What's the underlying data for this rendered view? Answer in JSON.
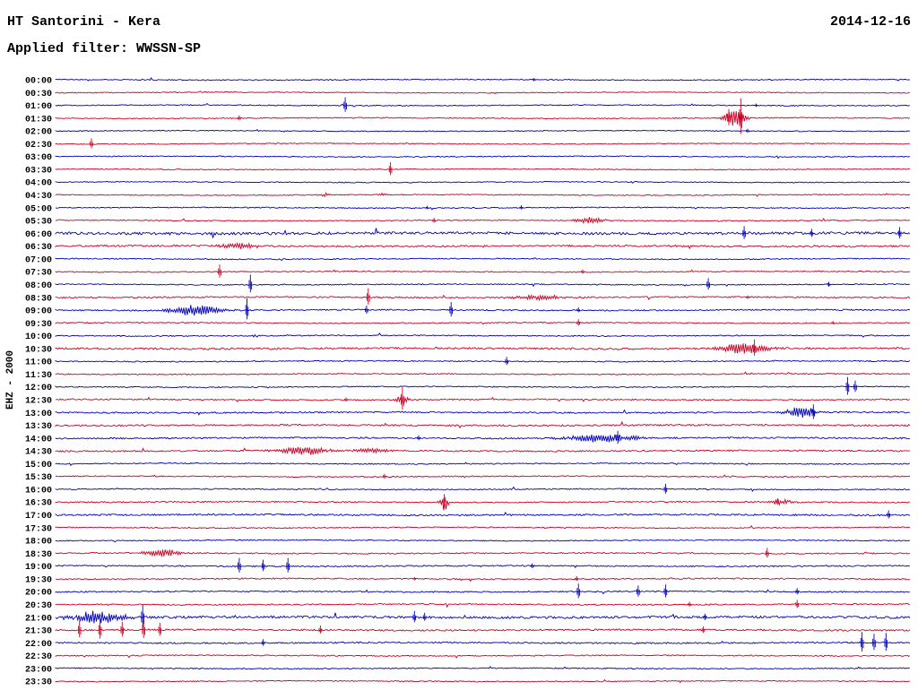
{
  "header": {
    "station_title": "HT Santorini - Kera",
    "date": "2014-12-16",
    "filter_label": "Applied filter: WWSSN-SP"
  },
  "axis": {
    "channel_label": "EHZ - 2000"
  },
  "chart_data": {
    "type": "helicorder",
    "title": "HT Santorini - Kera",
    "date": "2014-12-16",
    "filter": "WWSSN-SP",
    "channel": "EHZ - 2000",
    "row_minutes": 30,
    "rows_count": 48,
    "time_start": "00:00",
    "time_end": "23:30",
    "colors": {
      "blue": "#0000bb",
      "red": "#cc0022"
    },
    "rows": [
      {
        "label": "00:00",
        "color": "blue",
        "noise": 0.55,
        "events": [
          {
            "kind": "spike",
            "pos": 0.56,
            "amp": 2
          }
        ]
      },
      {
        "label": "00:30",
        "color": "red",
        "noise": 0.5,
        "events": []
      },
      {
        "label": "01:00",
        "color": "blue",
        "noise": 0.55,
        "events": [
          {
            "kind": "spike",
            "pos": 0.339,
            "amp": 9
          },
          {
            "kind": "spike",
            "pos": 0.82,
            "amp": 2
          }
        ]
      },
      {
        "label": "01:30",
        "color": "red",
        "noise": 0.55,
        "events": [
          {
            "kind": "burst",
            "pos": 0.795,
            "w": 0.02,
            "amp": 11
          },
          {
            "kind": "spike",
            "pos": 0.802,
            "amp": 22
          },
          {
            "kind": "spike",
            "pos": 0.788,
            "amp": 10
          },
          {
            "kind": "spike",
            "pos": 0.215,
            "amp": 3
          }
        ]
      },
      {
        "label": "02:00",
        "color": "blue",
        "noise": 0.5,
        "events": [
          {
            "kind": "spike",
            "pos": 0.81,
            "amp": 2.5
          }
        ]
      },
      {
        "label": "02:30",
        "color": "red",
        "noise": 0.5,
        "events": [
          {
            "kind": "spike",
            "pos": 0.042,
            "amp": 6
          }
        ]
      },
      {
        "label": "03:00",
        "color": "blue",
        "noise": 0.5,
        "events": []
      },
      {
        "label": "03:30",
        "color": "red",
        "noise": 0.5,
        "events": [
          {
            "kind": "spike",
            "pos": 0.392,
            "amp": 8
          }
        ]
      },
      {
        "label": "04:00",
        "color": "blue",
        "noise": 0.5,
        "events": []
      },
      {
        "label": "04:30",
        "color": "red",
        "noise": 0.55,
        "events": [
          {
            "kind": "burst",
            "pos": 0.315,
            "w": 0.01,
            "amp": 2
          },
          {
            "kind": "burst",
            "pos": 0.385,
            "w": 0.01,
            "amp": 2
          }
        ]
      },
      {
        "label": "05:00",
        "color": "blue",
        "noise": 0.55,
        "events": [
          {
            "kind": "spike",
            "pos": 0.545,
            "amp": 2.5
          },
          {
            "kind": "spike",
            "pos": 0.435,
            "amp": 2
          }
        ]
      },
      {
        "label": "05:30",
        "color": "red",
        "noise": 0.6,
        "events": [
          {
            "kind": "burst",
            "pos": 0.625,
            "w": 0.032,
            "amp": 3.5
          },
          {
            "kind": "spike",
            "pos": 0.443,
            "amp": 3
          }
        ]
      },
      {
        "label": "06:00",
        "color": "blue",
        "noise": 1.4,
        "events": [
          {
            "kind": "spike",
            "pos": 0.806,
            "amp": 8
          },
          {
            "kind": "spike",
            "pos": 0.885,
            "amp": 5
          },
          {
            "kind": "spike",
            "pos": 0.988,
            "amp": 7
          }
        ]
      },
      {
        "label": "06:30",
        "color": "red",
        "noise": 1.0,
        "events": [
          {
            "kind": "burst",
            "pos": 0.215,
            "w": 0.04,
            "amp": 3
          }
        ]
      },
      {
        "label": "07:00",
        "color": "blue",
        "noise": 0.6,
        "events": []
      },
      {
        "label": "07:30",
        "color": "red",
        "noise": 0.6,
        "events": [
          {
            "kind": "spike",
            "pos": 0.192,
            "amp": 8
          },
          {
            "kind": "spike",
            "pos": 0.617,
            "amp": 2.5
          }
        ]
      },
      {
        "label": "08:00",
        "color": "blue",
        "noise": 0.6,
        "events": [
          {
            "kind": "spike",
            "pos": 0.228,
            "amp": 11
          },
          {
            "kind": "spike",
            "pos": 0.764,
            "amp": 7
          },
          {
            "kind": "spike",
            "pos": 0.905,
            "amp": 3
          }
        ]
      },
      {
        "label": "08:30",
        "color": "red",
        "noise": 0.8,
        "events": [
          {
            "kind": "spike",
            "pos": 0.366,
            "amp": 10
          },
          {
            "kind": "burst",
            "pos": 0.565,
            "w": 0.052,
            "amp": 2.5
          },
          {
            "kind": "spike",
            "pos": 0.81,
            "amp": 2
          }
        ]
      },
      {
        "label": "09:00",
        "color": "blue",
        "noise": 0.7,
        "events": [
          {
            "kind": "burst",
            "pos": 0.165,
            "w": 0.052,
            "amp": 6
          },
          {
            "kind": "spike",
            "pos": 0.224,
            "amp": 13
          },
          {
            "kind": "spike",
            "pos": 0.364,
            "amp": 5
          },
          {
            "kind": "spike",
            "pos": 0.463,
            "amp": 9
          },
          {
            "kind": "spike",
            "pos": 0.612,
            "amp": 3
          }
        ]
      },
      {
        "label": "09:30",
        "color": "red",
        "noise": 0.6,
        "events": [
          {
            "kind": "spike",
            "pos": 0.612,
            "amp": 4
          },
          {
            "kind": "spike",
            "pos": 0.91,
            "amp": 2
          }
        ]
      },
      {
        "label": "10:00",
        "color": "blue",
        "noise": 0.6,
        "events": []
      },
      {
        "label": "10:30",
        "color": "red",
        "noise": 1.0,
        "events": [
          {
            "kind": "burst",
            "pos": 0.805,
            "w": 0.047,
            "amp": 6
          },
          {
            "kind": "spike",
            "pos": 0.818,
            "amp": 10
          }
        ]
      },
      {
        "label": "11:00",
        "color": "blue",
        "noise": 0.6,
        "events": [
          {
            "kind": "spike",
            "pos": 0.528,
            "amp": 5
          }
        ]
      },
      {
        "label": "11:30",
        "color": "red",
        "noise": 0.6,
        "events": []
      },
      {
        "label": "12:00",
        "color": "blue",
        "noise": 0.6,
        "events": [
          {
            "kind": "spike",
            "pos": 0.927,
            "amp": 11
          },
          {
            "kind": "spike",
            "pos": 0.936,
            "amp": 7
          }
        ]
      },
      {
        "label": "12:30",
        "color": "red",
        "noise": 0.7,
        "events": [
          {
            "kind": "spike",
            "pos": 0.406,
            "amp": 14
          },
          {
            "kind": "burst",
            "pos": 0.406,
            "w": 0.015,
            "amp": 4
          },
          {
            "kind": "spike",
            "pos": 0.34,
            "amp": 2.5
          }
        ]
      },
      {
        "label": "13:00",
        "color": "blue",
        "noise": 0.8,
        "events": [
          {
            "kind": "burst",
            "pos": 0.872,
            "w": 0.028,
            "amp": 7
          },
          {
            "kind": "spike",
            "pos": 0.887,
            "amp": 9
          }
        ]
      },
      {
        "label": "13:30",
        "color": "red",
        "noise": 0.9,
        "events": []
      },
      {
        "label": "14:00",
        "color": "blue",
        "noise": 0.8,
        "events": [
          {
            "kind": "burst",
            "pos": 0.64,
            "w": 0.067,
            "amp": 5
          },
          {
            "kind": "spike",
            "pos": 0.658,
            "amp": 8
          },
          {
            "kind": "spike",
            "pos": 0.425,
            "amp": 3
          }
        ]
      },
      {
        "label": "14:30",
        "color": "red",
        "noise": 0.8,
        "events": [
          {
            "kind": "burst",
            "pos": 0.29,
            "w": 0.047,
            "amp": 5
          },
          {
            "kind": "burst",
            "pos": 0.37,
            "w": 0.035,
            "amp": 2.5
          }
        ]
      },
      {
        "label": "15:00",
        "color": "blue",
        "noise": 0.6,
        "events": []
      },
      {
        "label": "15:30",
        "color": "red",
        "noise": 0.6,
        "events": [
          {
            "kind": "spike",
            "pos": 0.385,
            "amp": 3
          }
        ]
      },
      {
        "label": "16:00",
        "color": "blue",
        "noise": 0.6,
        "events": [
          {
            "kind": "spike",
            "pos": 0.714,
            "amp": 6
          }
        ]
      },
      {
        "label": "16:30",
        "color": "red",
        "noise": 0.7,
        "events": [
          {
            "kind": "burst",
            "pos": 0.455,
            "w": 0.008,
            "amp": 9
          },
          {
            "kind": "spike",
            "pos": 0.455,
            "amp": 9
          },
          {
            "kind": "burst",
            "pos": 0.85,
            "w": 0.026,
            "amp": 2.5
          },
          {
            "kind": "spike",
            "pos": 0.845,
            "amp": 4
          }
        ]
      },
      {
        "label": "17:00",
        "color": "blue",
        "noise": 0.9,
        "events": [
          {
            "kind": "spike",
            "pos": 0.975,
            "amp": 5
          }
        ]
      },
      {
        "label": "17:30",
        "color": "red",
        "noise": 0.55,
        "events": []
      },
      {
        "label": "18:00",
        "color": "blue",
        "noise": 0.55,
        "events": []
      },
      {
        "label": "18:30",
        "color": "red",
        "noise": 0.7,
        "events": [
          {
            "kind": "burst",
            "pos": 0.125,
            "w": 0.038,
            "amp": 4
          },
          {
            "kind": "spike",
            "pos": 0.833,
            "amp": 6
          }
        ]
      },
      {
        "label": "19:00",
        "color": "blue",
        "noise": 0.7,
        "events": [
          {
            "kind": "spike",
            "pos": 0.215,
            "amp": 9
          },
          {
            "kind": "spike",
            "pos": 0.243,
            "amp": 7
          },
          {
            "kind": "spike",
            "pos": 0.272,
            "amp": 9
          },
          {
            "kind": "spike",
            "pos": 0.558,
            "amp": 3
          }
        ]
      },
      {
        "label": "19:30",
        "color": "red",
        "noise": 0.7,
        "events": [
          {
            "kind": "spike",
            "pos": 0.61,
            "amp": 3
          },
          {
            "kind": "spike",
            "pos": 0.42,
            "amp": 2
          }
        ]
      },
      {
        "label": "20:00",
        "color": "blue",
        "noise": 0.7,
        "events": [
          {
            "kind": "spike",
            "pos": 0.612,
            "amp": 9
          },
          {
            "kind": "spike",
            "pos": 0.682,
            "amp": 7
          },
          {
            "kind": "spike",
            "pos": 0.714,
            "amp": 8
          },
          {
            "kind": "spike",
            "pos": 0.868,
            "amp": 4
          }
        ]
      },
      {
        "label": "20:30",
        "color": "red",
        "noise": 0.7,
        "events": [
          {
            "kind": "spike",
            "pos": 0.742,
            "amp": 3
          },
          {
            "kind": "spike",
            "pos": 0.868,
            "amp": 5
          }
        ]
      },
      {
        "label": "21:00",
        "color": "blue",
        "noise": 1.3,
        "events": [
          {
            "kind": "burst",
            "pos": 0.05,
            "w": 0.055,
            "amp": 7
          },
          {
            "kind": "spike",
            "pos": 0.102,
            "amp": 14
          },
          {
            "kind": "spike",
            "pos": 0.42,
            "amp": 7
          },
          {
            "kind": "spike",
            "pos": 0.432,
            "amp": 5
          },
          {
            "kind": "spike",
            "pos": 0.76,
            "amp": 4
          }
        ]
      },
      {
        "label": "21:30",
        "color": "red",
        "noise": 0.9,
        "events": [
          {
            "kind": "spike",
            "pos": 0.028,
            "amp": 10
          },
          {
            "kind": "spike",
            "pos": 0.052,
            "amp": 12
          },
          {
            "kind": "spike",
            "pos": 0.078,
            "amp": 9
          },
          {
            "kind": "spike",
            "pos": 0.103,
            "amp": 11
          },
          {
            "kind": "spike",
            "pos": 0.122,
            "amp": 8
          },
          {
            "kind": "spike",
            "pos": 0.31,
            "amp": 5
          },
          {
            "kind": "spike",
            "pos": 0.758,
            "amp": 4
          }
        ]
      },
      {
        "label": "22:00",
        "color": "blue",
        "noise": 0.8,
        "events": [
          {
            "kind": "spike",
            "pos": 0.243,
            "amp": 4
          },
          {
            "kind": "spike",
            "pos": 0.944,
            "amp": 12
          },
          {
            "kind": "spike",
            "pos": 0.958,
            "amp": 10
          },
          {
            "kind": "spike",
            "pos": 0.972,
            "amp": 11
          }
        ]
      },
      {
        "label": "22:30",
        "color": "red",
        "noise": 0.6,
        "events": []
      },
      {
        "label": "23:00",
        "color": "blue",
        "noise": 0.6,
        "events": []
      },
      {
        "label": "23:30",
        "color": "red",
        "noise": 0.55,
        "events": []
      }
    ]
  }
}
